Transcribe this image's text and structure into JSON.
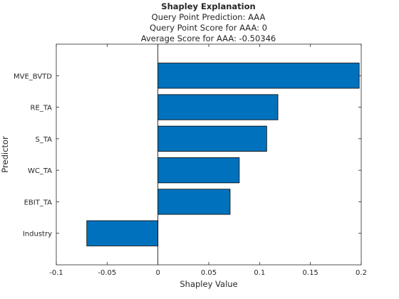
{
  "chart_data": {
    "type": "bar",
    "orientation": "horizontal",
    "title": "Shapley Explanation",
    "subtitles": [
      "Query Point Prediction: AAA",
      "Query Point Score for AAA: 0",
      "Average Score for AAA: -0.50346"
    ],
    "xlabel": "Shapley Value",
    "ylabel": "Predictor",
    "xlim": [
      -0.1,
      0.2
    ],
    "xticks": [
      -0.1,
      -0.05,
      0,
      0.05,
      0.1,
      0.15,
      0.2
    ],
    "xtick_labels": [
      "-0.1",
      "-0.05",
      "0",
      "0.05",
      "0.1",
      "0.15",
      "0.2"
    ],
    "categories": [
      "MVE_BVTD",
      "RE_TA",
      "S_TA",
      "WC_TA",
      "EBIT_TA",
      "Industry"
    ],
    "values": [
      0.198,
      0.118,
      0.107,
      0.08,
      0.071,
      -0.07
    ],
    "bar_color": "#0072BD",
    "grid": false,
    "legend": "none"
  }
}
